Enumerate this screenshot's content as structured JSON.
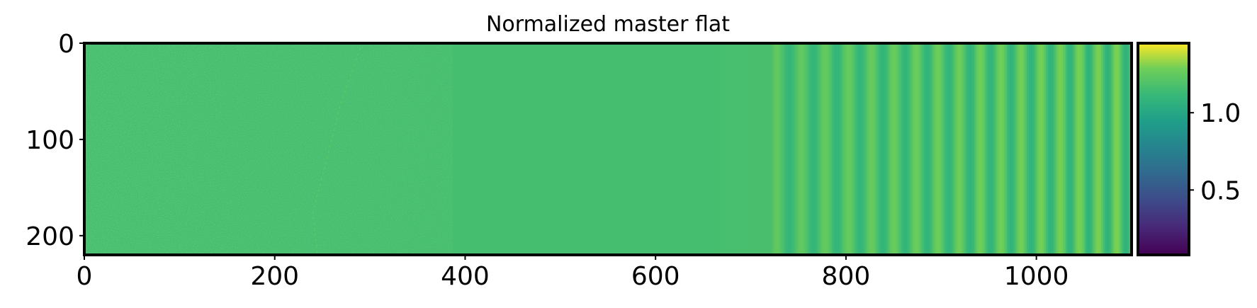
{
  "chart_data": {
    "type": "heatmap",
    "title": "Normalized master flat",
    "xlabel": "",
    "ylabel": "",
    "colormap": "viridis",
    "image_width": 1100,
    "image_height": 220,
    "xlim": [
      0,
      1100
    ],
    "ylim": [
      220,
      0
    ],
    "x_ticks": [
      0,
      200,
      400,
      600,
      800,
      1000
    ],
    "x_tick_labels": [
      "0",
      "200",
      "400",
      "600",
      "800",
      "1000"
    ],
    "y_ticks": [
      0,
      100,
      200
    ],
    "y_tick_labels": [
      "0",
      "100",
      "200"
    ],
    "value_range": [
      0.08,
      1.45
    ],
    "typical_value": 1.0,
    "colorbar": {
      "ticks": [
        0.5,
        1.0
      ],
      "tick_labels": [
        "0.5",
        "1.0"
      ],
      "range": [
        0.08,
        1.45
      ]
    },
    "fringe_region_start_x": 720
  }
}
